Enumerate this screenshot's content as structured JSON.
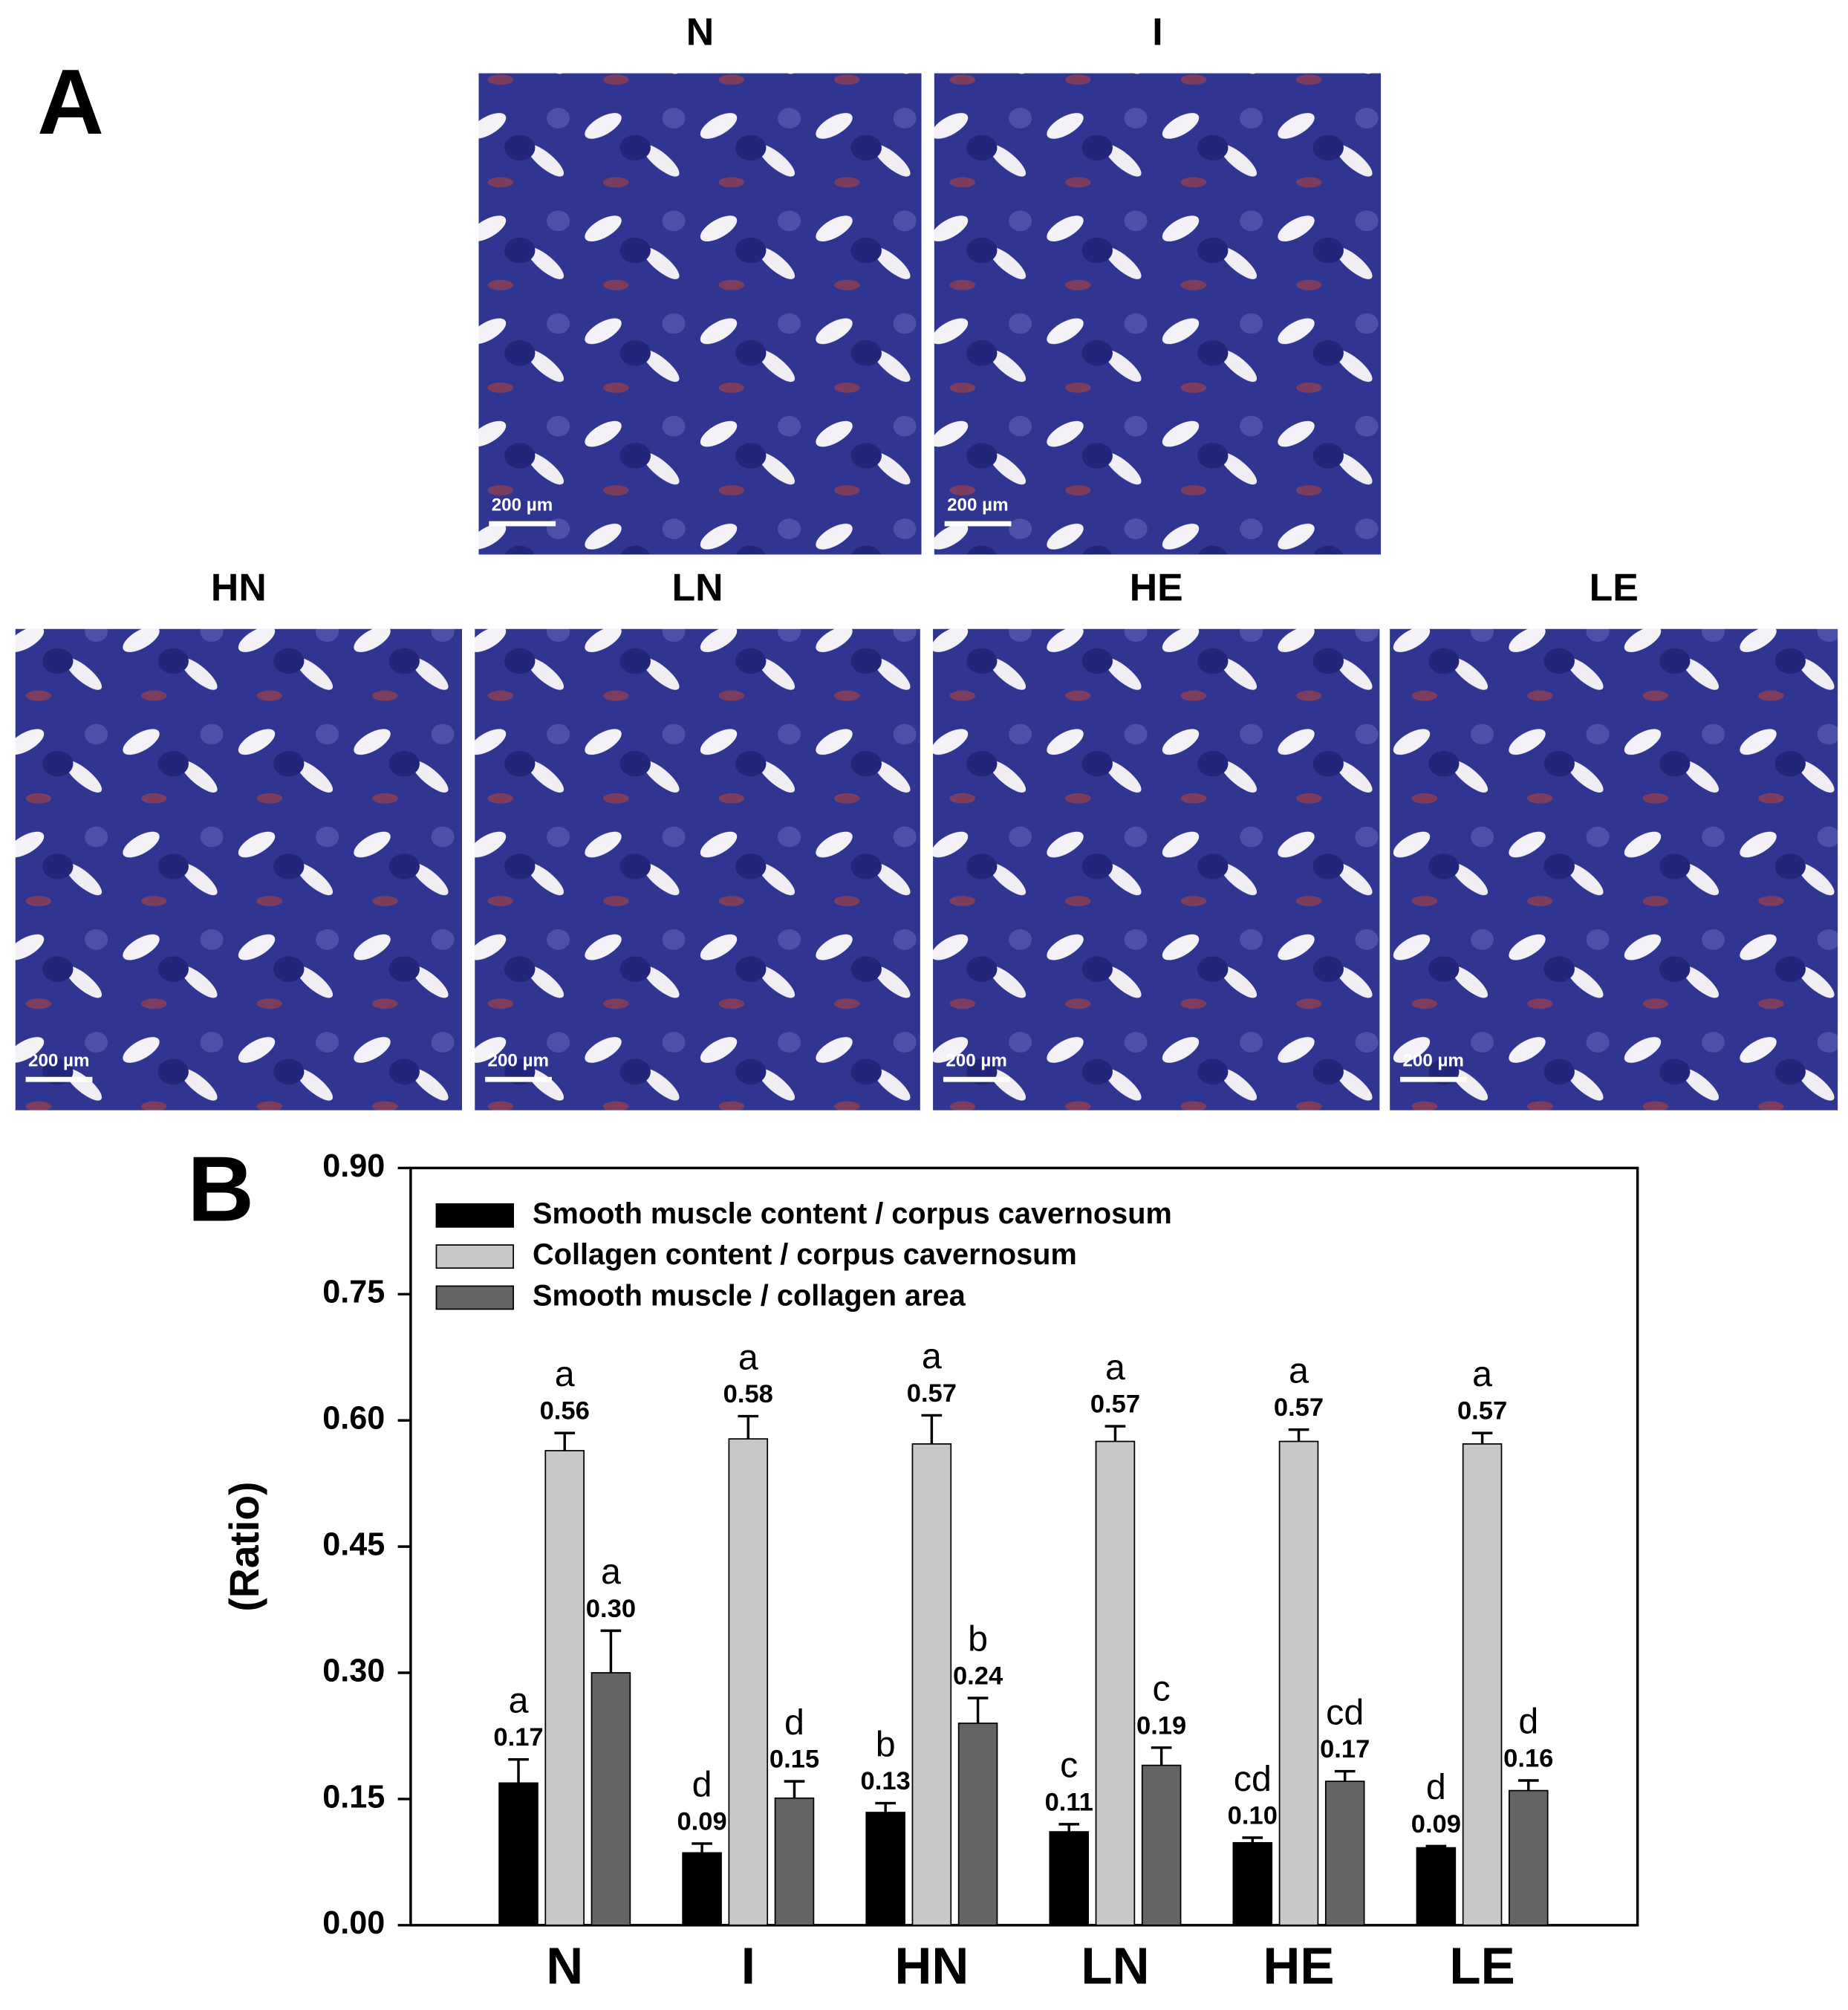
{
  "figure": {
    "panel_a_label": "A",
    "panel_b_label": "B",
    "images": [
      {
        "title": "N",
        "scale_bar": "200 µm"
      },
      {
        "title": "I",
        "scale_bar": "200 µm"
      },
      {
        "title": "HN",
        "scale_bar": "200 µm"
      },
      {
        "title": "LN",
        "scale_bar": "200 µm"
      },
      {
        "title": "HE",
        "scale_bar": "200 µm"
      },
      {
        "title": "LE",
        "scale_bar": "200 µm"
      }
    ]
  },
  "chart_data": {
    "type": "bar",
    "ylabel": "(Ratio)",
    "categories": [
      "N",
      "I",
      "HN",
      "LN",
      "HE",
      "LE"
    ],
    "series": [
      {
        "name": "Smooth muscle content / corpus cavernosum",
        "color": "#000000",
        "values": [
          0.169,
          0.086,
          0.134,
          0.111,
          0.098,
          0.092
        ],
        "value_labels": [
          "0.17",
          "0.09",
          "0.13",
          "0.11",
          "0.10",
          "0.09"
        ],
        "errors": [
          0.028,
          0.011,
          0.011,
          0.009,
          0.006,
          0.002
        ],
        "letters": [
          "a",
          "d",
          "b",
          "c",
          "cd",
          "d"
        ]
      },
      {
        "name": "Collagen content / corpus cavernosum",
        "color": "#c8c8c8",
        "values": [
          0.564,
          0.578,
          0.572,
          0.575,
          0.575,
          0.572
        ],
        "value_labels": [
          "0.56",
          "0.58",
          "0.57",
          "0.57",
          "0.57",
          "0.57"
        ],
        "errors": [
          0.021,
          0.027,
          0.034,
          0.018,
          0.014,
          0.013
        ],
        "letters": [
          "a",
          "a",
          "a",
          "a",
          "a",
          "a"
        ]
      },
      {
        "name": "Smooth muscle / collagen area",
        "color": "#646464",
        "values": [
          0.3,
          0.151,
          0.24,
          0.19,
          0.171,
          0.16
        ],
        "value_labels": [
          "0.30",
          "0.15",
          "0.24",
          "0.19",
          "0.17",
          "0.16"
        ],
        "errors": [
          0.05,
          0.02,
          0.03,
          0.021,
          0.012,
          0.012
        ],
        "letters": [
          "a",
          "d",
          "b",
          "c",
          "cd",
          "d"
        ]
      }
    ],
    "ylim": [
      0,
      0.9
    ],
    "yticks": [
      {
        "value": 0,
        "label": "0.00"
      },
      0.15,
      {
        "value": 0.3,
        "label": "0.30"
      },
      0.45,
      {
        "value": 0.6,
        "label": "0.60"
      },
      0.75,
      {
        "value": 0.9,
        "label": "0.90"
      }
    ],
    "legend": "upper left"
  }
}
